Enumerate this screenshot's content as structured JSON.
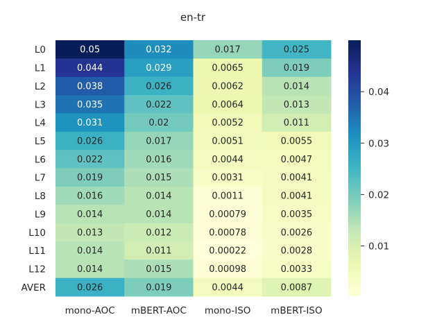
{
  "chart_data": {
    "type": "heatmap",
    "title": "en-tr",
    "columns": [
      "mono-AOC",
      "mBERT-AOC",
      "mono-ISO",
      "mBERT-ISO"
    ],
    "rows": [
      "L0",
      "L1",
      "L2",
      "L3",
      "L4",
      "L5",
      "L6",
      "L7",
      "L8",
      "L9",
      "L10",
      "L11",
      "L12",
      "AVER"
    ],
    "values": [
      [
        0.05,
        0.032,
        0.017,
        0.025
      ],
      [
        0.044,
        0.029,
        0.0065,
        0.019
      ],
      [
        0.038,
        0.026,
        0.0062,
        0.014
      ],
      [
        0.035,
        0.022,
        0.0064,
        0.013
      ],
      [
        0.031,
        0.02,
        0.0052,
        0.011
      ],
      [
        0.026,
        0.017,
        0.0051,
        0.0055
      ],
      [
        0.022,
        0.016,
        0.0044,
        0.0047
      ],
      [
        0.019,
        0.015,
        0.0031,
        0.0041
      ],
      [
        0.016,
        0.014,
        0.0011,
        0.0041
      ],
      [
        0.014,
        0.014,
        0.00079,
        0.0035
      ],
      [
        0.013,
        0.012,
        0.00078,
        0.0026
      ],
      [
        0.014,
        0.011,
        0.00022,
        0.0028
      ],
      [
        0.014,
        0.015,
        0.00098,
        0.0033
      ],
      [
        0.026,
        0.019,
        0.0044,
        0.0087
      ]
    ],
    "labels": [
      [
        "0.05",
        "0.032",
        "0.017",
        "0.025"
      ],
      [
        "0.044",
        "0.029",
        "0.0065",
        "0.019"
      ],
      [
        "0.038",
        "0.026",
        "0.0062",
        "0.014"
      ],
      [
        "0.035",
        "0.022",
        "0.0064",
        "0.013"
      ],
      [
        "0.031",
        "0.02",
        "0.0052",
        "0.011"
      ],
      [
        "0.026",
        "0.017",
        "0.0051",
        "0.0055"
      ],
      [
        "0.022",
        "0.016",
        "0.0044",
        "0.0047"
      ],
      [
        "0.019",
        "0.015",
        "0.0031",
        "0.0041"
      ],
      [
        "0.016",
        "0.014",
        "0.0011",
        "0.0041"
      ],
      [
        "0.014",
        "0.014",
        "0.00079",
        "0.0035"
      ],
      [
        "0.013",
        "0.012",
        "0.00078",
        "0.0026"
      ],
      [
        "0.014",
        "0.011",
        "0.00022",
        "0.0028"
      ],
      [
        "0.014",
        "0.015",
        "0.00098",
        "0.0033"
      ],
      [
        "0.026",
        "0.019",
        "0.0044",
        "0.0087"
      ]
    ],
    "colormap": "YlGnBu",
    "vmin": 0.00022,
    "vmax": 0.05,
    "colorbar_ticks": [
      0.01,
      0.02,
      0.03,
      0.04
    ],
    "colorbar_tick_labels": [
      "0.01",
      "0.02",
      "0.03",
      "0.04"
    ],
    "colors": {
      "cmap_stops": [
        "#ffffd9",
        "#edf8b1",
        "#c7e9b4",
        "#7fcdbb",
        "#41b6c4",
        "#1d91c0",
        "#225ea8",
        "#253494",
        "#081d58"
      ],
      "text_dark": "#262626",
      "text_light": "#ffffff"
    }
  }
}
